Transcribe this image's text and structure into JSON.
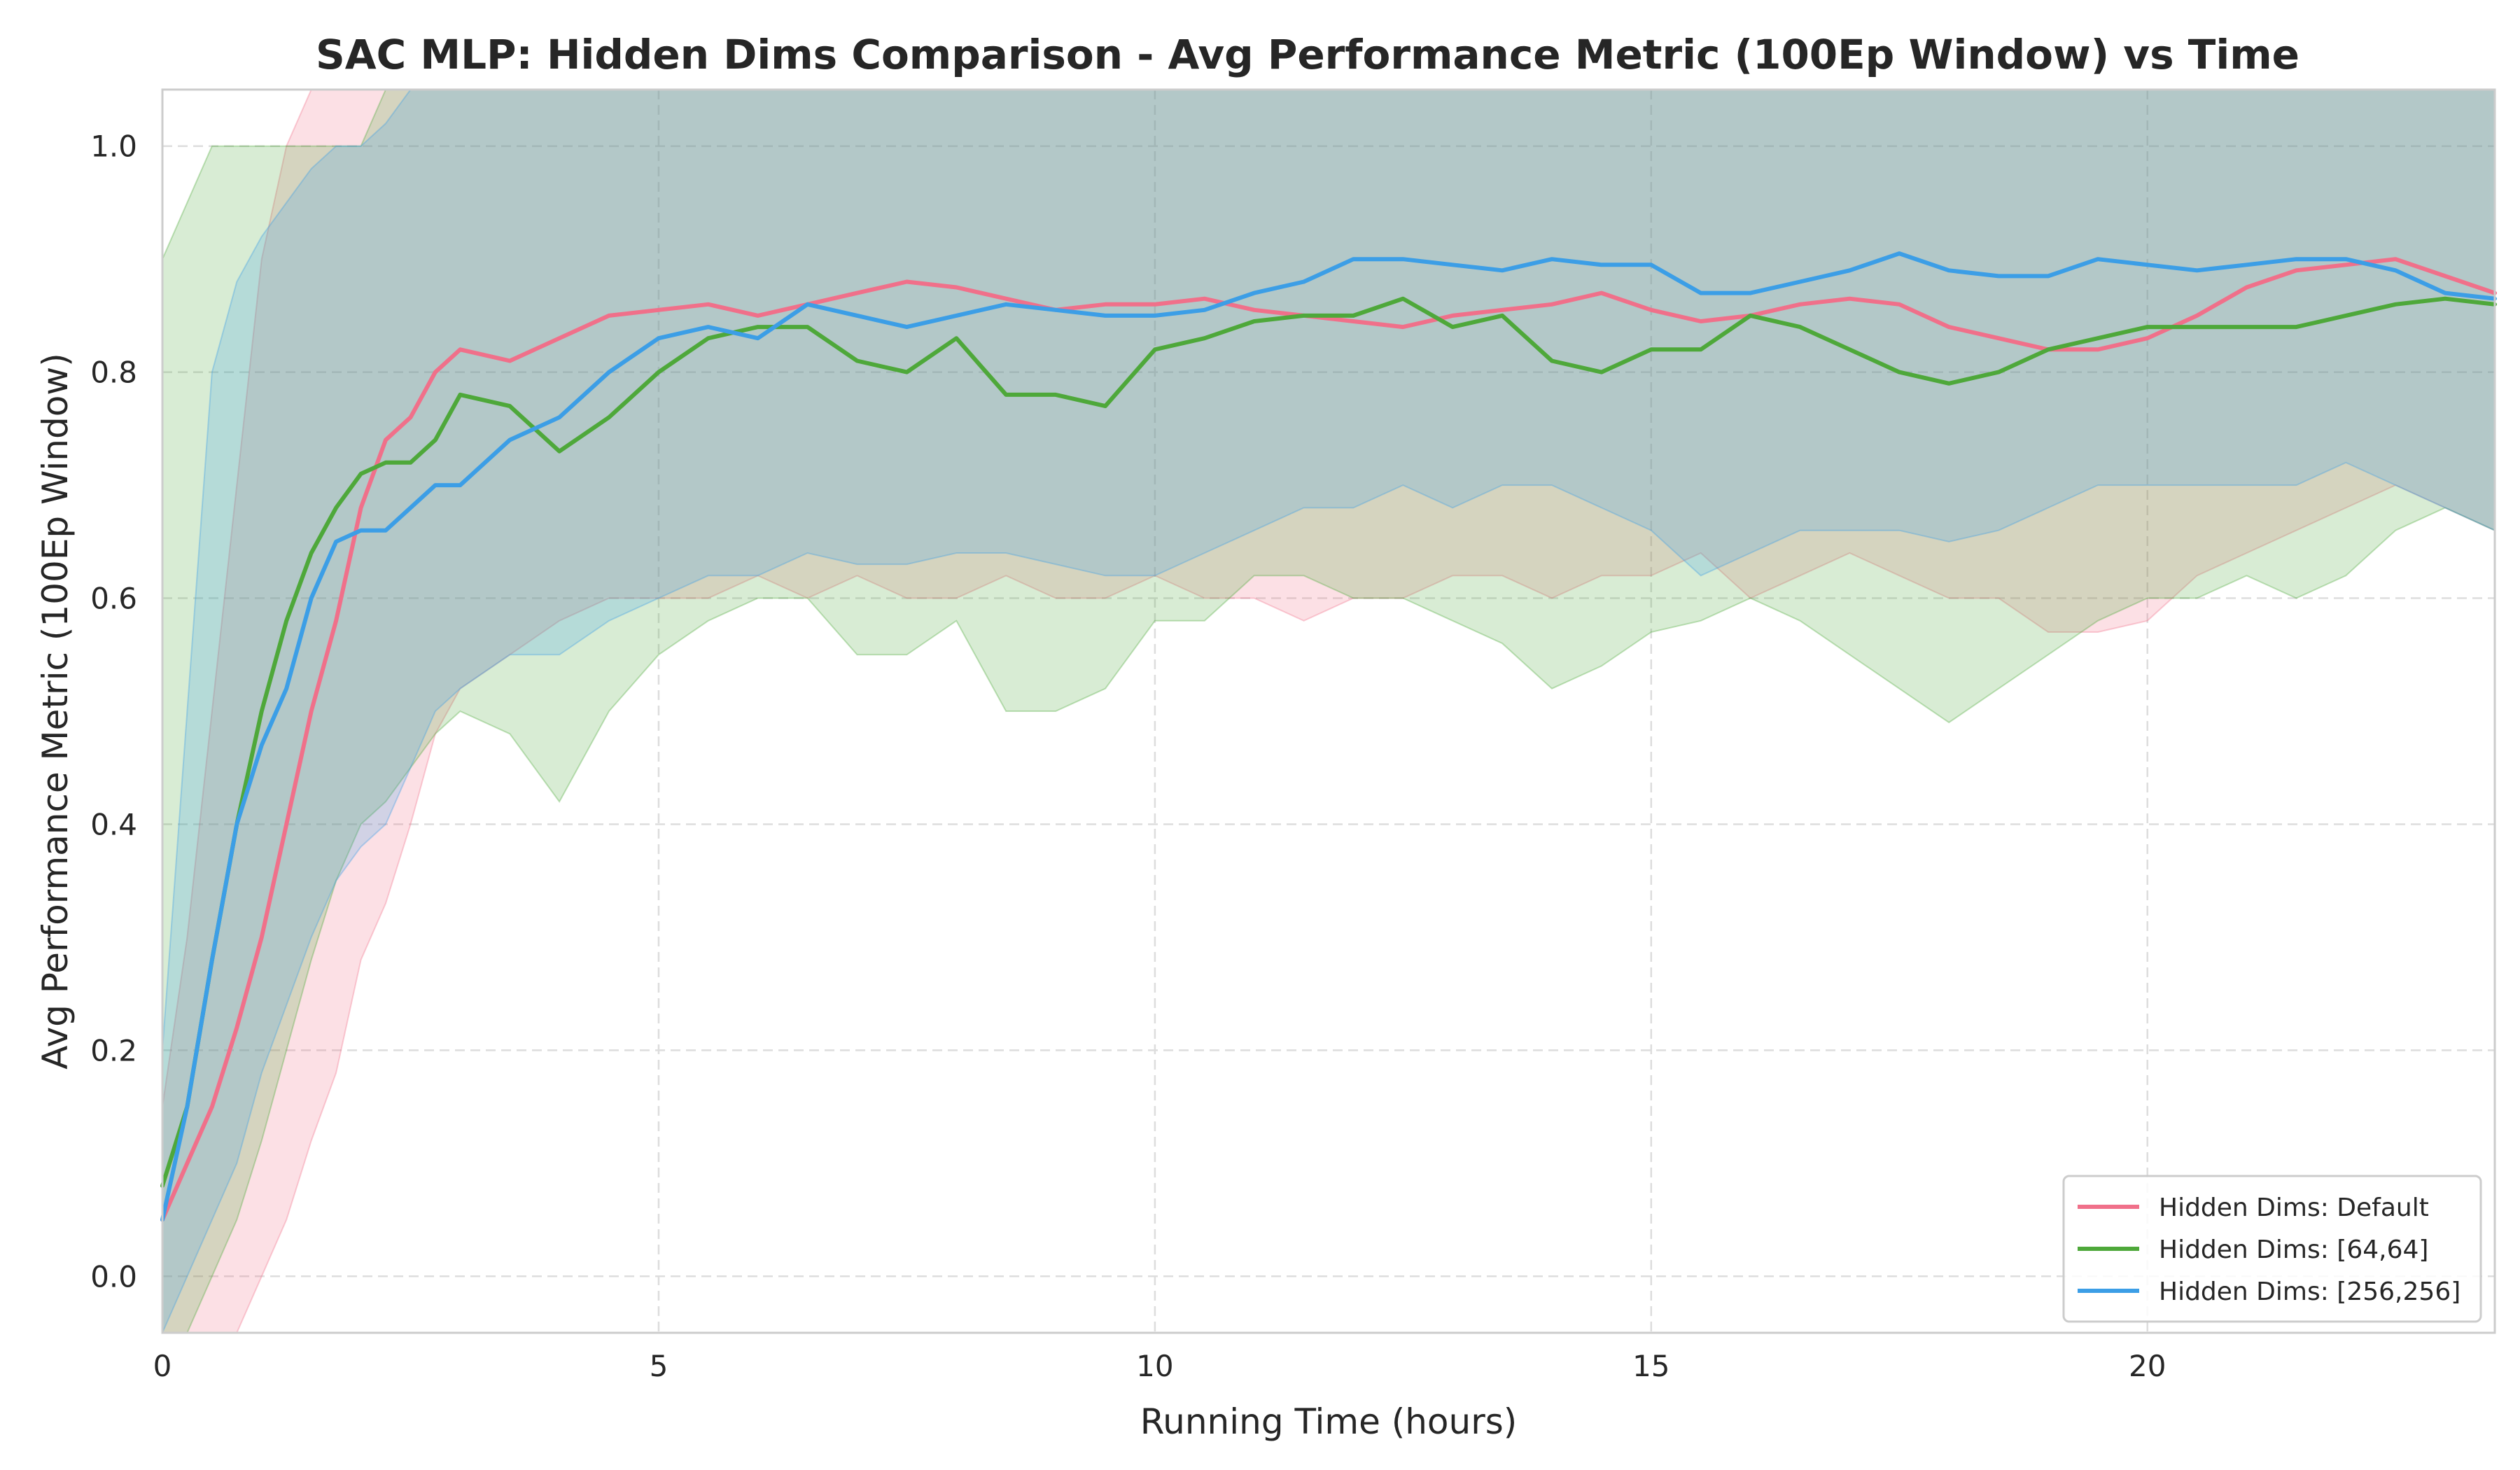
{
  "chart_data": {
    "type": "line",
    "title": "SAC MLP: Hidden Dims Comparison - Avg Performance Metric (100Ep Window) vs Time",
    "xlabel": "Running Time (hours)",
    "ylabel": "Avg Performance Metric (100Ep Window)",
    "xlim": [
      0,
      23.5
    ],
    "ylim": [
      -0.05,
      1.05
    ],
    "xticks": [
      0,
      5,
      10,
      15,
      20
    ],
    "yticks": [
      0.0,
      0.2,
      0.4,
      0.6,
      0.8,
      1.0
    ],
    "xtick_labels": [
      "0",
      "5",
      "10",
      "15",
      "20"
    ],
    "ytick_labels": [
      "0.0",
      "0.2",
      "0.4",
      "0.6",
      "0.8",
      "1.0"
    ],
    "grid": true,
    "legend_position": "bottom-right",
    "series": [
      {
        "name": "Hidden Dims: Default",
        "color": "#f0708a",
        "x": [
          0,
          0.25,
          0.5,
          0.75,
          1,
          1.25,
          1.5,
          1.75,
          2,
          2.25,
          2.5,
          2.75,
          3,
          3.5,
          4,
          4.5,
          5,
          5.5,
          6,
          6.5,
          7,
          7.5,
          8,
          8.5,
          9,
          9.5,
          10,
          10.5,
          11,
          11.5,
          12,
          12.5,
          13,
          13.5,
          14,
          14.5,
          15,
          15.5,
          16,
          16.5,
          17,
          17.5,
          18,
          18.5,
          19,
          19.5,
          20,
          20.5,
          21,
          21.5,
          22,
          22.5,
          23,
          23.5
        ],
        "values": [
          0.05,
          0.1,
          0.15,
          0.22,
          0.3,
          0.4,
          0.5,
          0.58,
          0.68,
          0.74,
          0.76,
          0.8,
          0.82,
          0.81,
          0.83,
          0.85,
          0.855,
          0.86,
          0.85,
          0.86,
          0.87,
          0.88,
          0.875,
          0.865,
          0.855,
          0.86,
          0.86,
          0.865,
          0.855,
          0.85,
          0.845,
          0.84,
          0.85,
          0.855,
          0.86,
          0.87,
          0.855,
          0.845,
          0.85,
          0.86,
          0.865,
          0.86,
          0.84,
          0.83,
          0.82,
          0.82,
          0.83,
          0.85,
          0.875,
          0.89,
          0.895,
          0.9,
          0.885,
          0.87
        ],
        "lower": [
          -0.1,
          -0.1,
          -0.1,
          -0.1,
          0.0,
          0.05,
          0.12,
          0.18,
          0.28,
          0.33,
          0.4,
          0.48,
          0.52,
          0.55,
          0.58,
          0.6,
          0.6,
          0.6,
          0.62,
          0.6,
          0.62,
          0.6,
          0.6,
          0.62,
          0.6,
          0.6,
          0.62,
          0.6,
          0.6,
          0.58,
          0.6,
          0.6,
          0.62,
          0.62,
          0.6,
          0.62,
          0.62,
          0.64,
          0.6,
          0.62,
          0.64,
          0.62,
          0.6,
          0.6,
          0.57,
          0.57,
          0.58,
          0.62,
          0.64,
          0.66,
          0.68,
          0.7,
          0.68,
          0.66
        ],
        "upper": [
          0.15,
          0.3,
          0.5,
          0.7,
          0.9,
          1.0,
          1.05,
          1.05,
          1.05,
          1.05,
          1.05,
          1.05,
          1.05,
          1.05,
          1.05,
          1.05,
          1.05,
          1.05,
          1.05,
          1.05,
          1.05,
          1.05,
          1.05,
          1.05,
          1.05,
          1.05,
          1.05,
          1.05,
          1.05,
          1.05,
          1.05,
          1.05,
          1.05,
          1.05,
          1.05,
          1.05,
          1.05,
          1.05,
          1.05,
          1.05,
          1.05,
          1.05,
          1.05,
          1.05,
          1.05,
          1.05,
          1.05,
          1.05,
          1.05,
          1.05,
          1.05,
          1.05,
          1.05,
          1.05
        ]
      },
      {
        "name": "Hidden Dims: [64,64]",
        "color": "#4ea83a",
        "x": [
          0,
          0.25,
          0.5,
          0.75,
          1,
          1.25,
          1.5,
          1.75,
          2,
          2.25,
          2.5,
          2.75,
          3,
          3.5,
          4,
          4.5,
          5,
          5.5,
          6,
          6.5,
          7,
          7.5,
          8,
          8.5,
          9,
          9.5,
          10,
          10.5,
          11,
          11.5,
          12,
          12.5,
          13,
          13.5,
          14,
          14.5,
          15,
          15.5,
          16,
          16.5,
          17,
          17.5,
          18,
          18.5,
          19,
          19.5,
          20,
          20.5,
          21,
          21.5,
          22,
          22.5,
          23,
          23.5
        ],
        "values": [
          0.08,
          0.15,
          0.28,
          0.4,
          0.5,
          0.58,
          0.64,
          0.68,
          0.71,
          0.72,
          0.72,
          0.74,
          0.78,
          0.77,
          0.73,
          0.76,
          0.8,
          0.83,
          0.84,
          0.84,
          0.81,
          0.8,
          0.83,
          0.78,
          0.78,
          0.77,
          0.82,
          0.83,
          0.845,
          0.85,
          0.85,
          0.865,
          0.84,
          0.85,
          0.81,
          0.8,
          0.82,
          0.82,
          0.85,
          0.84,
          0.82,
          0.8,
          0.79,
          0.8,
          0.82,
          0.83,
          0.84,
          0.84,
          0.84,
          0.84,
          0.85,
          0.86,
          0.865,
          0.86
        ],
        "lower": [
          -0.05,
          -0.05,
          0.0,
          0.05,
          0.12,
          0.2,
          0.28,
          0.35,
          0.4,
          0.42,
          0.45,
          0.48,
          0.5,
          0.48,
          0.42,
          0.5,
          0.55,
          0.58,
          0.6,
          0.6,
          0.55,
          0.55,
          0.58,
          0.5,
          0.5,
          0.52,
          0.58,
          0.58,
          0.62,
          0.62,
          0.6,
          0.6,
          0.58,
          0.56,
          0.52,
          0.54,
          0.57,
          0.58,
          0.6,
          0.58,
          0.55,
          0.52,
          0.49,
          0.52,
          0.55,
          0.58,
          0.6,
          0.6,
          0.62,
          0.6,
          0.62,
          0.66,
          0.68,
          0.66
        ],
        "upper": [
          0.9,
          0.95,
          1.0,
          1.0,
          1.0,
          1.0,
          1.0,
          1.0,
          1.0,
          1.05,
          1.05,
          1.05,
          1.05,
          1.05,
          1.05,
          1.05,
          1.05,
          1.05,
          1.05,
          1.05,
          1.05,
          1.05,
          1.05,
          1.05,
          1.05,
          1.05,
          1.05,
          1.05,
          1.05,
          1.05,
          1.05,
          1.05,
          1.05,
          1.05,
          1.05,
          1.05,
          1.05,
          1.05,
          1.05,
          1.05,
          1.05,
          1.05,
          1.05,
          1.05,
          1.05,
          1.05,
          1.05,
          1.05,
          1.05,
          1.05,
          1.05,
          1.05,
          1.05,
          1.05
        ]
      },
      {
        "name": "Hidden Dims: [256,256]",
        "color": "#3c9ee6",
        "x": [
          0,
          0.25,
          0.5,
          0.75,
          1,
          1.25,
          1.5,
          1.75,
          2,
          2.25,
          2.5,
          2.75,
          3,
          3.5,
          4,
          4.5,
          5,
          5.5,
          6,
          6.5,
          7,
          7.5,
          8,
          8.5,
          9,
          9.5,
          10,
          10.5,
          11,
          11.5,
          12,
          12.5,
          13,
          13.5,
          14,
          14.5,
          15,
          15.5,
          16,
          16.5,
          17,
          17.5,
          18,
          18.5,
          19,
          19.5,
          20,
          20.5,
          21,
          21.5,
          22,
          22.5,
          23,
          23.5
        ],
        "values": [
          0.05,
          0.15,
          0.28,
          0.4,
          0.47,
          0.52,
          0.6,
          0.65,
          0.66,
          0.66,
          0.68,
          0.7,
          0.7,
          0.74,
          0.76,
          0.8,
          0.83,
          0.84,
          0.83,
          0.86,
          0.85,
          0.84,
          0.85,
          0.86,
          0.855,
          0.85,
          0.85,
          0.855,
          0.87,
          0.88,
          0.9,
          0.9,
          0.895,
          0.89,
          0.9,
          0.895,
          0.895,
          0.87,
          0.87,
          0.88,
          0.89,
          0.905,
          0.89,
          0.885,
          0.885,
          0.9,
          0.895,
          0.89,
          0.895,
          0.9,
          0.9,
          0.89,
          0.87,
          0.865
        ],
        "lower": [
          -0.05,
          0.0,
          0.05,
          0.1,
          0.18,
          0.24,
          0.3,
          0.35,
          0.38,
          0.4,
          0.45,
          0.5,
          0.52,
          0.55,
          0.55,
          0.58,
          0.6,
          0.62,
          0.62,
          0.64,
          0.63,
          0.63,
          0.64,
          0.64,
          0.63,
          0.62,
          0.62,
          0.64,
          0.66,
          0.68,
          0.68,
          0.7,
          0.68,
          0.7,
          0.7,
          0.68,
          0.66,
          0.62,
          0.64,
          0.66,
          0.66,
          0.66,
          0.65,
          0.66,
          0.68,
          0.7,
          0.7,
          0.7,
          0.7,
          0.7,
          0.72,
          0.7,
          0.68,
          0.66
        ],
        "upper": [
          0.2,
          0.5,
          0.8,
          0.88,
          0.92,
          0.95,
          0.98,
          1.0,
          1.0,
          1.02,
          1.05,
          1.05,
          1.05,
          1.05,
          1.05,
          1.05,
          1.05,
          1.05,
          1.05,
          1.05,
          1.05,
          1.05,
          1.05,
          1.05,
          1.05,
          1.05,
          1.05,
          1.05,
          1.05,
          1.05,
          1.05,
          1.05,
          1.05,
          1.05,
          1.05,
          1.05,
          1.05,
          1.05,
          1.05,
          1.05,
          1.05,
          1.05,
          1.05,
          1.05,
          1.05,
          1.05,
          1.05,
          1.05,
          1.05,
          1.05,
          1.05,
          1.05,
          1.05,
          1.05
        ]
      }
    ]
  }
}
